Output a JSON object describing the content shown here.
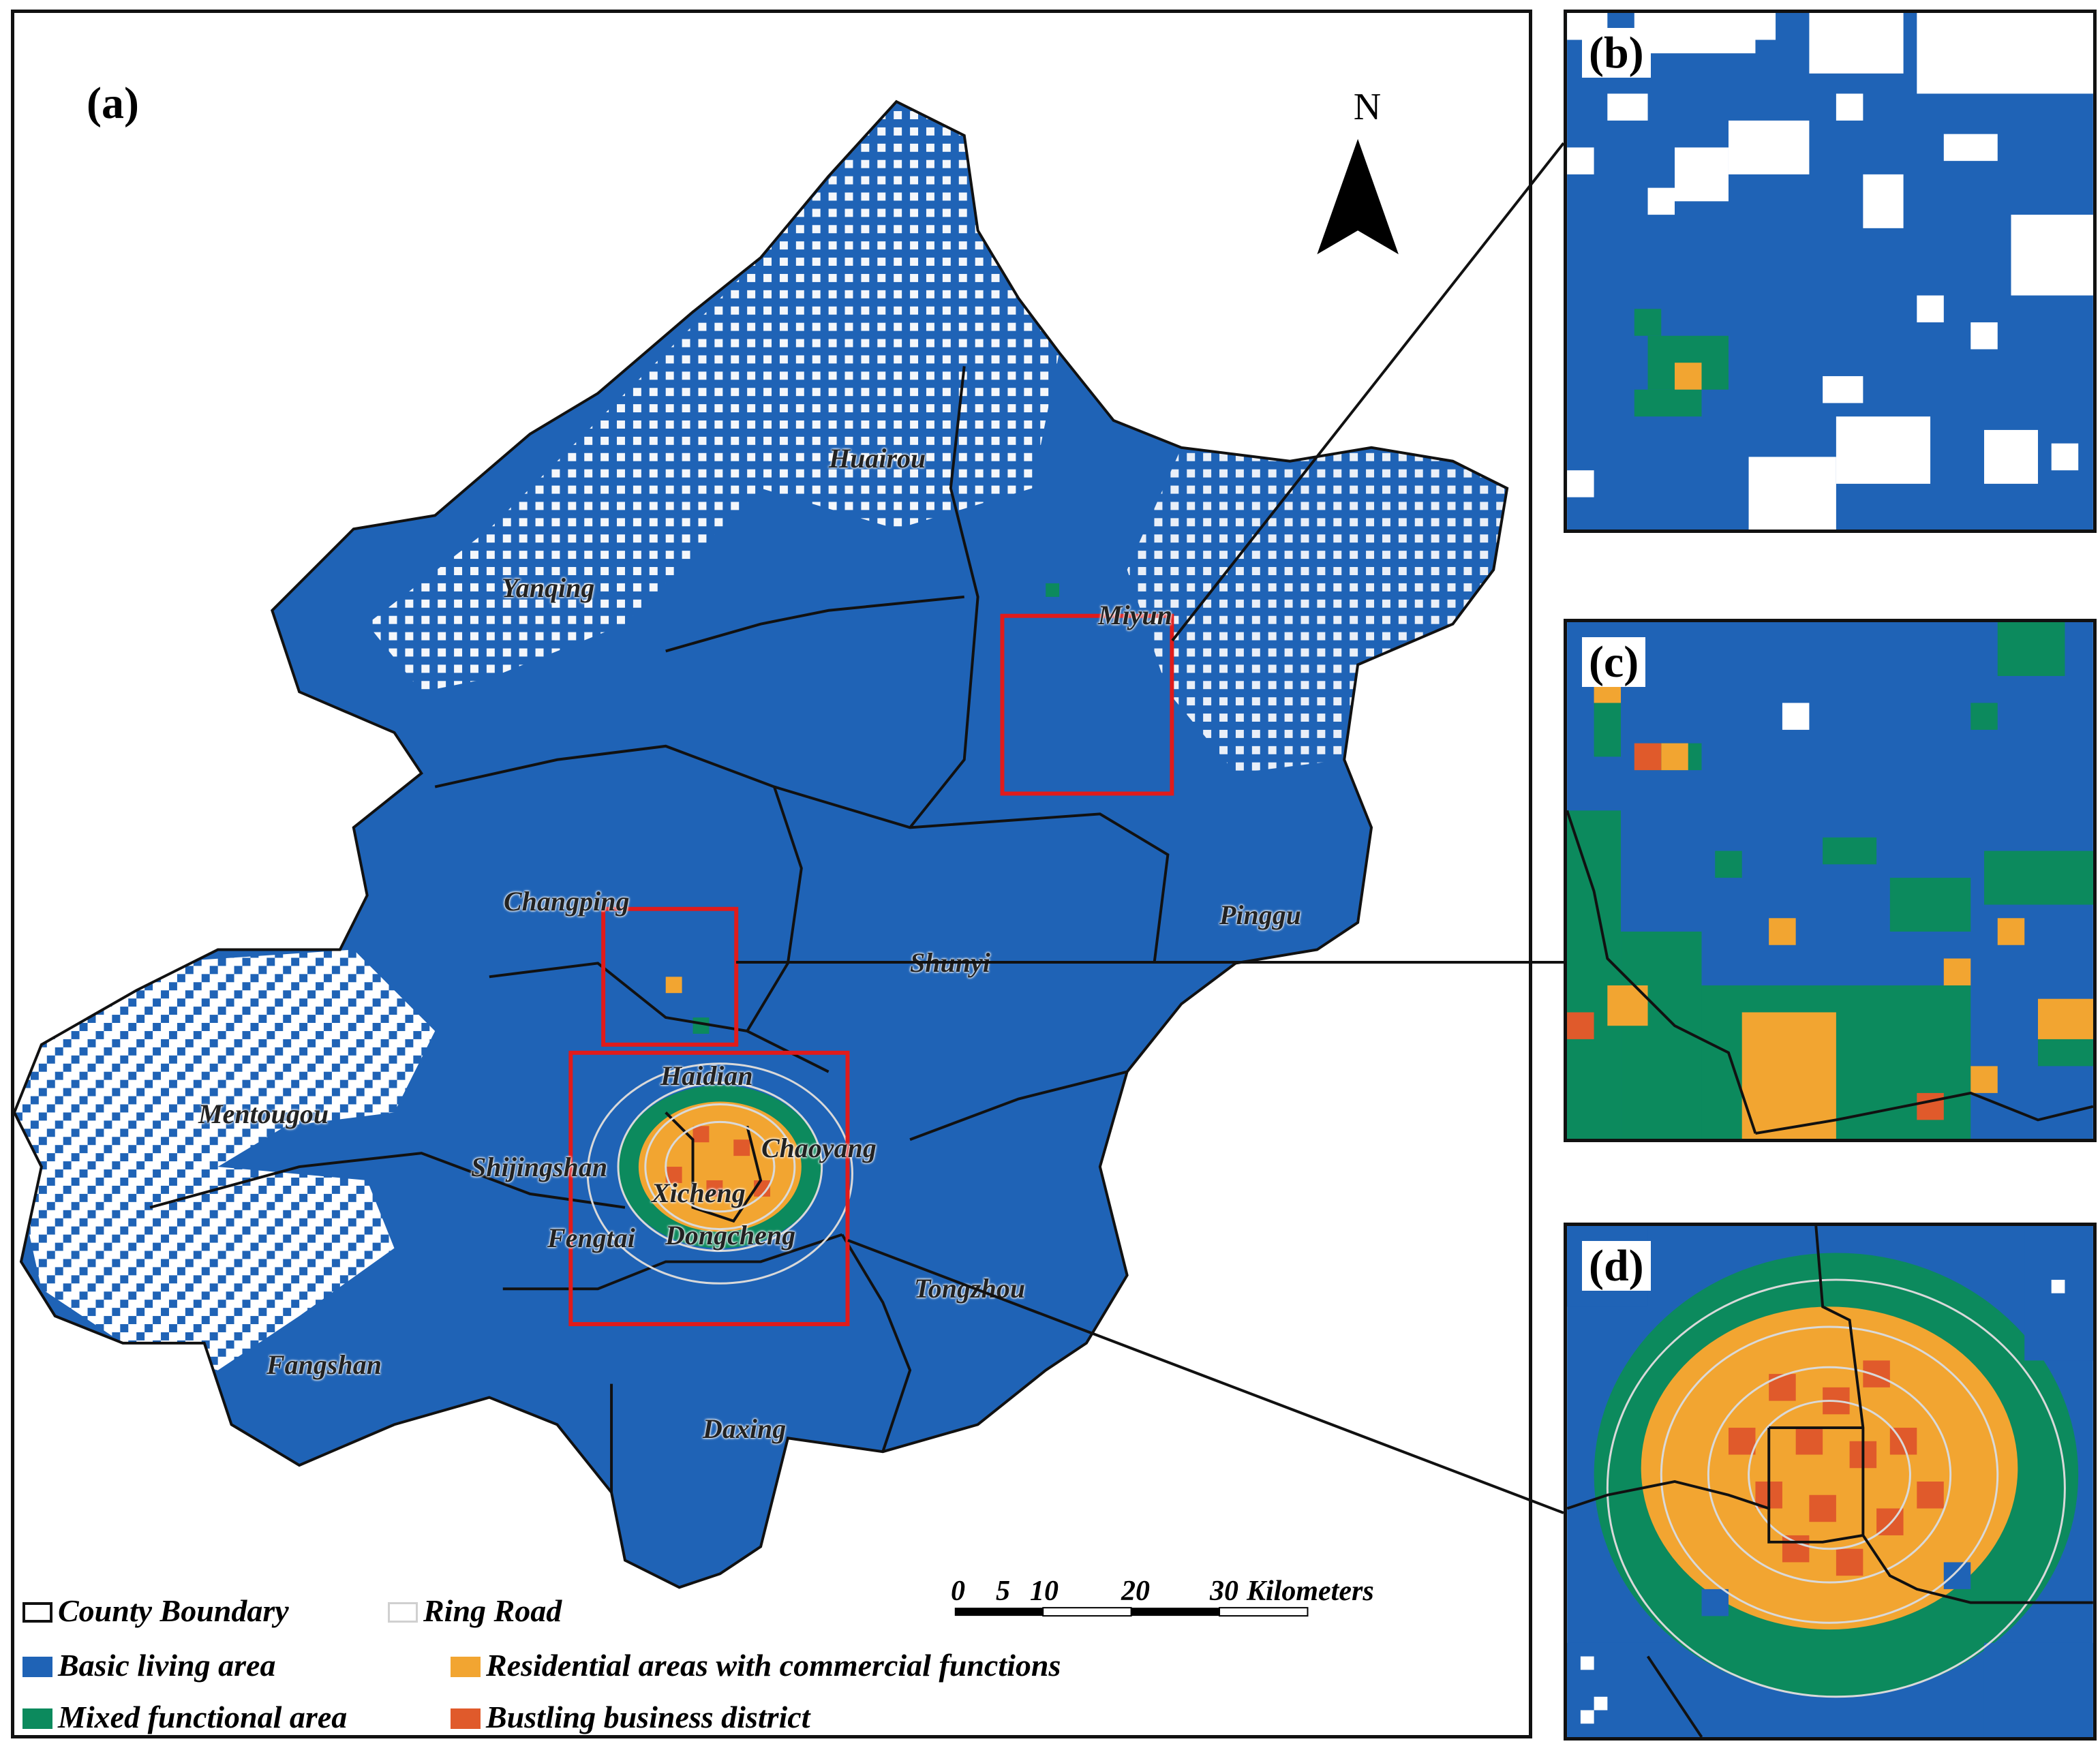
{
  "panels": {
    "a": "(a)",
    "b": "(b)",
    "c": "(c)",
    "d": "(d)"
  },
  "north_label": "N",
  "districts": [
    "Huairou",
    "Yanqing",
    "Miyun",
    "Changping",
    "Pinggu",
    "Shunyi",
    "Haidian",
    "Mentougou",
    "Chaoyang",
    "Shijingshan",
    "Xicheng",
    "Fengtai",
    "Dongcheng",
    "Tongzhou",
    "Fangshan",
    "Daxing"
  ],
  "scale": {
    "ticks": [
      "0",
      "5",
      "10",
      "20",
      "30"
    ],
    "unit": "Kilometers"
  },
  "legend": {
    "county_boundary": "County Boundary",
    "ring_road": "Ring Road",
    "basic_living": "Basic living area",
    "residential_commercial": "Residential areas with commercial functions",
    "mixed_functional": "Mixed functional area",
    "bustling_business": "Bustling business district"
  },
  "colors": {
    "basic_living": "#1f63b6",
    "mixed_functional": "#0c8a5d",
    "residential_commercial": "#f2a531",
    "bustling_business": "#e05a2b",
    "highlight_box": "#e01b1b",
    "ring_road": "#d9d9d9"
  }
}
